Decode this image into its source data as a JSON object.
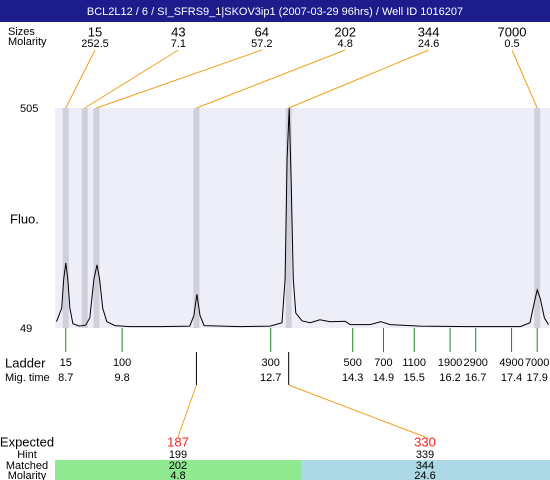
{
  "header": {
    "title": "BCL2L12 / 6 / SI_SFRS9_1|SKOV3ip1 (2007-03-29 96hrs) / Well ID 1016207"
  },
  "chart_data": {
    "type": "electropherogram",
    "y_label": "Fluo.",
    "ylim": [
      49,
      505
    ],
    "yticks": [
      49,
      505
    ],
    "xlim": [
      8.49,
      18.15
    ],
    "trace": {
      "color": "#000000",
      "x": [
        8.52,
        8.62,
        8.66,
        8.7,
        8.74,
        8.78,
        8.84,
        8.97,
        9.09,
        9.17,
        9.25,
        9.31,
        9.36,
        9.42,
        9.5,
        9.66,
        9.95,
        10.54,
        11.12,
        11.2,
        11.26,
        11.32,
        11.4,
        12.1,
        12.69,
        12.92,
        12.98,
        13.02,
        13.06,
        13.1,
        13.14,
        13.19,
        13.31,
        13.47,
        13.66,
        13.86,
        14.15,
        14.25,
        14.64,
        14.85,
        15.03,
        15.61,
        16.59,
        17.57,
        17.76,
        17.84,
        17.9,
        17.96,
        18.04,
        18.12
      ],
      "values": [
        62,
        90,
        150,
        184,
        150,
        90,
        58,
        53,
        55,
        70,
        150,
        180,
        150,
        90,
        62,
        54,
        52,
        52,
        53,
        75,
        119,
        75,
        54,
        52,
        53,
        60,
        150,
        400,
        505,
        350,
        150,
        80,
        64,
        60,
        66,
        62,
        63,
        56,
        56,
        62,
        56,
        53,
        52,
        52,
        60,
        100,
        128,
        110,
        70,
        56
      ]
    },
    "peaks": {
      "size_label": "Sizes",
      "molarity_label": "Molarity",
      "sizes": [
        15,
        43,
        64,
        202,
        344,
        7000
      ],
      "molarity": [
        252.5,
        7.1,
        57.2,
        4.8,
        24.6,
        0.5
      ],
      "mig_time": [
        8.7,
        9.07,
        9.3,
        11.25,
        13.05,
        17.9
      ],
      "band_color": "#d0d0dc",
      "line_color": "#f0a020"
    },
    "ladder": {
      "label": "Ladder",
      "time_label": "Mig. time",
      "sizes": [
        15,
        100,
        300,
        500,
        700,
        1100,
        1900,
        2900,
        4900,
        7000
      ],
      "mig_time": [
        8.7,
        9.8,
        12.7,
        14.3,
        14.9,
        15.5,
        16.2,
        16.7,
        17.4,
        17.9
      ],
      "color": "#208020"
    },
    "expected": {
      "label": "Expected",
      "hint_label": "Hint",
      "matched_label": "Matched",
      "molarity_label": "Molarity",
      "expected": [
        187,
        330
      ],
      "hint": [
        199,
        339
      ],
      "matched": [
        202,
        344
      ],
      "molarity": [
        4.8,
        24.6
      ],
      "expected_color": "#ff2020",
      "colors": [
        "#90e890",
        "#add8e6"
      ]
    }
  }
}
